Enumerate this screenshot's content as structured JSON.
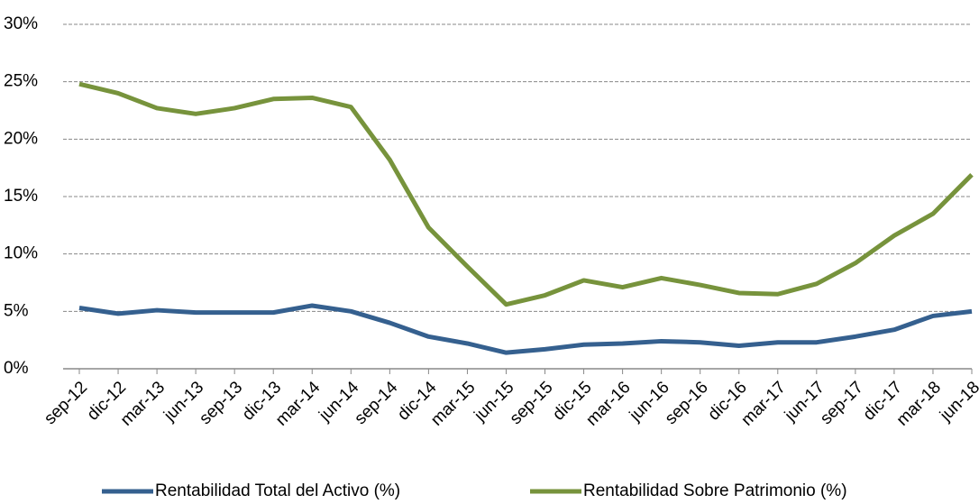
{
  "chart_data": {
    "type": "line",
    "categories": [
      "sep-12",
      "dic-12",
      "mar-13",
      "jun-13",
      "sep-13",
      "dic-13",
      "mar-14",
      "jun-14",
      "sep-14",
      "dic-14",
      "mar-15",
      "jun-15",
      "sep-15",
      "dic-15",
      "mar-16",
      "jun-16",
      "sep-16",
      "dic-16",
      "mar-17",
      "jun-17",
      "sep-17",
      "dic-17",
      "mar-18",
      "jun-18"
    ],
    "series": [
      {
        "name": "Rentabilidad Total del Activo (%)",
        "color": "#35608f",
        "values": [
          5.3,
          4.8,
          5.1,
          4.9,
          4.9,
          4.9,
          5.5,
          5.0,
          4.0,
          2.8,
          2.2,
          1.4,
          1.7,
          2.1,
          2.2,
          2.4,
          2.3,
          2.0,
          2.3,
          2.3,
          2.8,
          3.4,
          4.6,
          5.0
        ]
      },
      {
        "name": "Rentabilidad Sobre Patrimonio (%)",
        "color": "#77933c",
        "values": [
          24.8,
          24.0,
          22.7,
          22.2,
          22.7,
          23.5,
          23.6,
          22.8,
          18.2,
          12.3,
          8.9,
          5.6,
          6.4,
          7.7,
          7.1,
          7.9,
          7.3,
          6.6,
          6.5,
          7.4,
          9.2,
          11.6,
          13.5,
          16.9
        ]
      }
    ],
    "ylim": [
      0,
      30
    ],
    "yticks": [
      {
        "value": 0,
        "label": "0%"
      },
      {
        "value": 5,
        "label": "5%"
      },
      {
        "value": 10,
        "label": "10%"
      },
      {
        "value": 15,
        "label": "15%"
      },
      {
        "value": 20,
        "label": "20%"
      },
      {
        "value": 25,
        "label": "25%"
      },
      {
        "value": 30,
        "label": "30%"
      }
    ],
    "grid": true,
    "legend": "bottom"
  }
}
